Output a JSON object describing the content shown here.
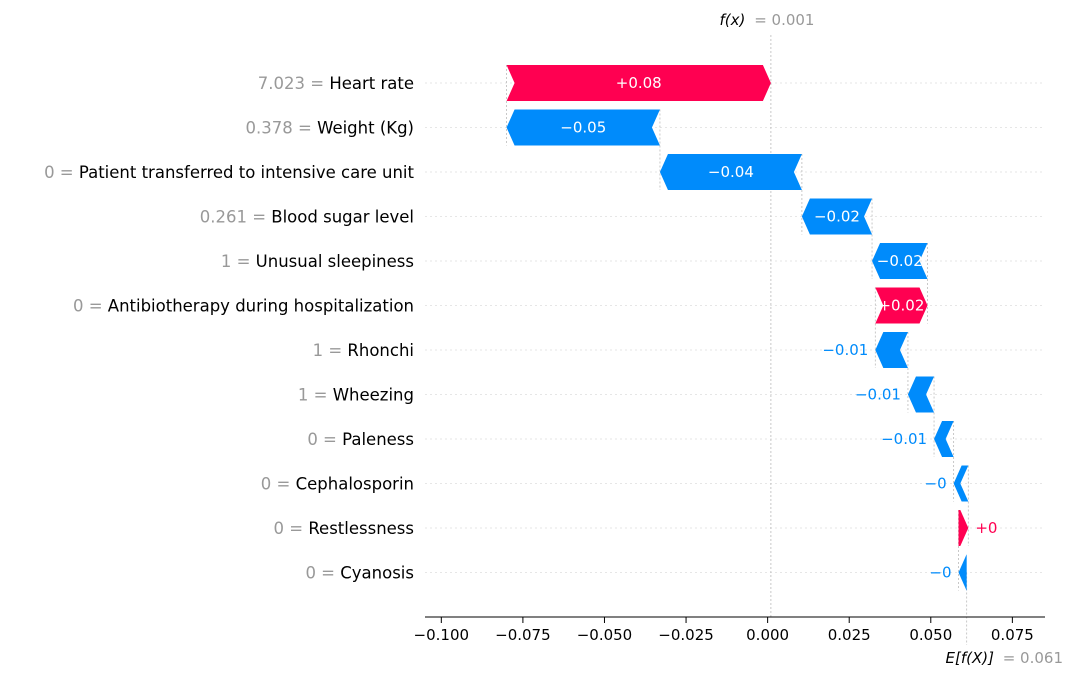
{
  "chart_data": {
    "type": "waterfall",
    "fx_label": "f(x)",
    "fx_value": "= 0.001",
    "efx_label": "E[f(X)]",
    "efx_value": "= 0.061",
    "fx": 0.001,
    "base_value": 0.061,
    "xlim": [
      -0.105,
      0.085
    ],
    "x_ticks": [
      -0.1,
      -0.075,
      -0.05,
      -0.025,
      0.0,
      0.025,
      0.05,
      0.075
    ],
    "x_tick_labels": [
      "−0.100",
      "−0.075",
      "−0.050",
      "−0.025",
      "0.000",
      "0.025",
      "0.050",
      "0.075"
    ],
    "features": [
      {
        "value": "7.023",
        "name": "Heart rate",
        "start": 0.001,
        "end": -0.08,
        "label": "+0.08",
        "sign": "pos"
      },
      {
        "value": "0.378",
        "name": "Weight (Kg)",
        "start": -0.08,
        "end": -0.033,
        "label": "−0.05",
        "sign": "neg"
      },
      {
        "value": "0",
        "name": "Patient transferred to intensive care unit",
        "start": -0.033,
        "end": 0.0105,
        "label": "−0.04",
        "sign": "neg"
      },
      {
        "value": "0.261",
        "name": "Blood sugar level",
        "start": 0.0105,
        "end": 0.032,
        "label": "−0.02",
        "sign": "neg"
      },
      {
        "value": "1",
        "name": "Unusual sleepiness",
        "start": 0.032,
        "end": 0.049,
        "label": "−0.02",
        "sign": "neg"
      },
      {
        "value": "0",
        "name": "Antibiotherapy during hospitalization",
        "start": 0.049,
        "end": 0.033,
        "label": "+0.02",
        "sign": "pos"
      },
      {
        "value": "1",
        "name": "Rhonchi",
        "start": 0.033,
        "end": 0.043,
        "label": "−0.01",
        "sign": "neg"
      },
      {
        "value": "1",
        "name": "Wheezing",
        "start": 0.043,
        "end": 0.051,
        "label": "−0.01",
        "sign": "neg"
      },
      {
        "value": "0",
        "name": "Paleness",
        "start": 0.051,
        "end": 0.057,
        "label": "−0.01",
        "sign": "neg"
      },
      {
        "value": "0",
        "name": "Cephalosporin",
        "start": 0.057,
        "end": 0.0615,
        "label": "−0",
        "sign": "neg"
      },
      {
        "value": "0",
        "name": "Restlessness",
        "start": 0.0615,
        "end": 0.0585,
        "label": "+0",
        "sign": "pos"
      },
      {
        "value": "0",
        "name": "Cyanosis",
        "start": 0.0585,
        "end": 0.061,
        "label": "−0",
        "sign": "neg"
      }
    ],
    "colors": {
      "positive": "#ff0051",
      "negative": "#008bfb"
    }
  }
}
